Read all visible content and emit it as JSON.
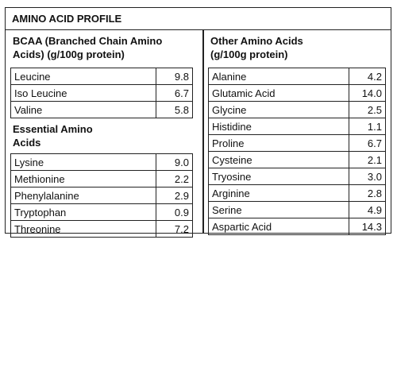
{
  "title": "AMINO ACID PROFILE",
  "bcaa": {
    "heading_line1": "BCAA (Branched Chain Amino",
    "heading_line2": "Acids) (g/100g protein)",
    "rows": [
      {
        "name": "Leucine",
        "value": "9.8"
      },
      {
        "name": "Iso Leucine",
        "value": "6.7"
      },
      {
        "name": "Valine",
        "value": "5.8"
      }
    ]
  },
  "essential": {
    "heading_line1": "Essential Amino",
    "heading_line2": "Acids",
    "rows": [
      {
        "name": "Lysine",
        "value": "9.0"
      },
      {
        "name": "Methionine",
        "value": "2.2"
      },
      {
        "name": "Phenylalanine",
        "value": "2.9"
      },
      {
        "name": "Tryptophan",
        "value": "0.9"
      },
      {
        "name": "Threonine",
        "value": "7.2"
      }
    ]
  },
  "other": {
    "heading_line1": "Other Amino Acids",
    "heading_line2": "(g/100g protein)",
    "rows": [
      {
        "name": "Alanine",
        "value": "4.2"
      },
      {
        "name": "Glutamic Acid",
        "value": "14.0"
      },
      {
        "name": "Glycine",
        "value": "2.5"
      },
      {
        "name": "Histidine",
        "value": "1.1"
      },
      {
        "name": "Proline",
        "value": "6.7"
      },
      {
        "name": "Cysteine",
        "value": "2.1"
      },
      {
        "name": "Tryosine",
        "value": "3.0"
      },
      {
        "name": "Arginine",
        "value": "2.8"
      },
      {
        "name": "Serine",
        "value": "4.9"
      },
      {
        "name": "Aspartic Acid",
        "value": "14.3"
      }
    ]
  }
}
